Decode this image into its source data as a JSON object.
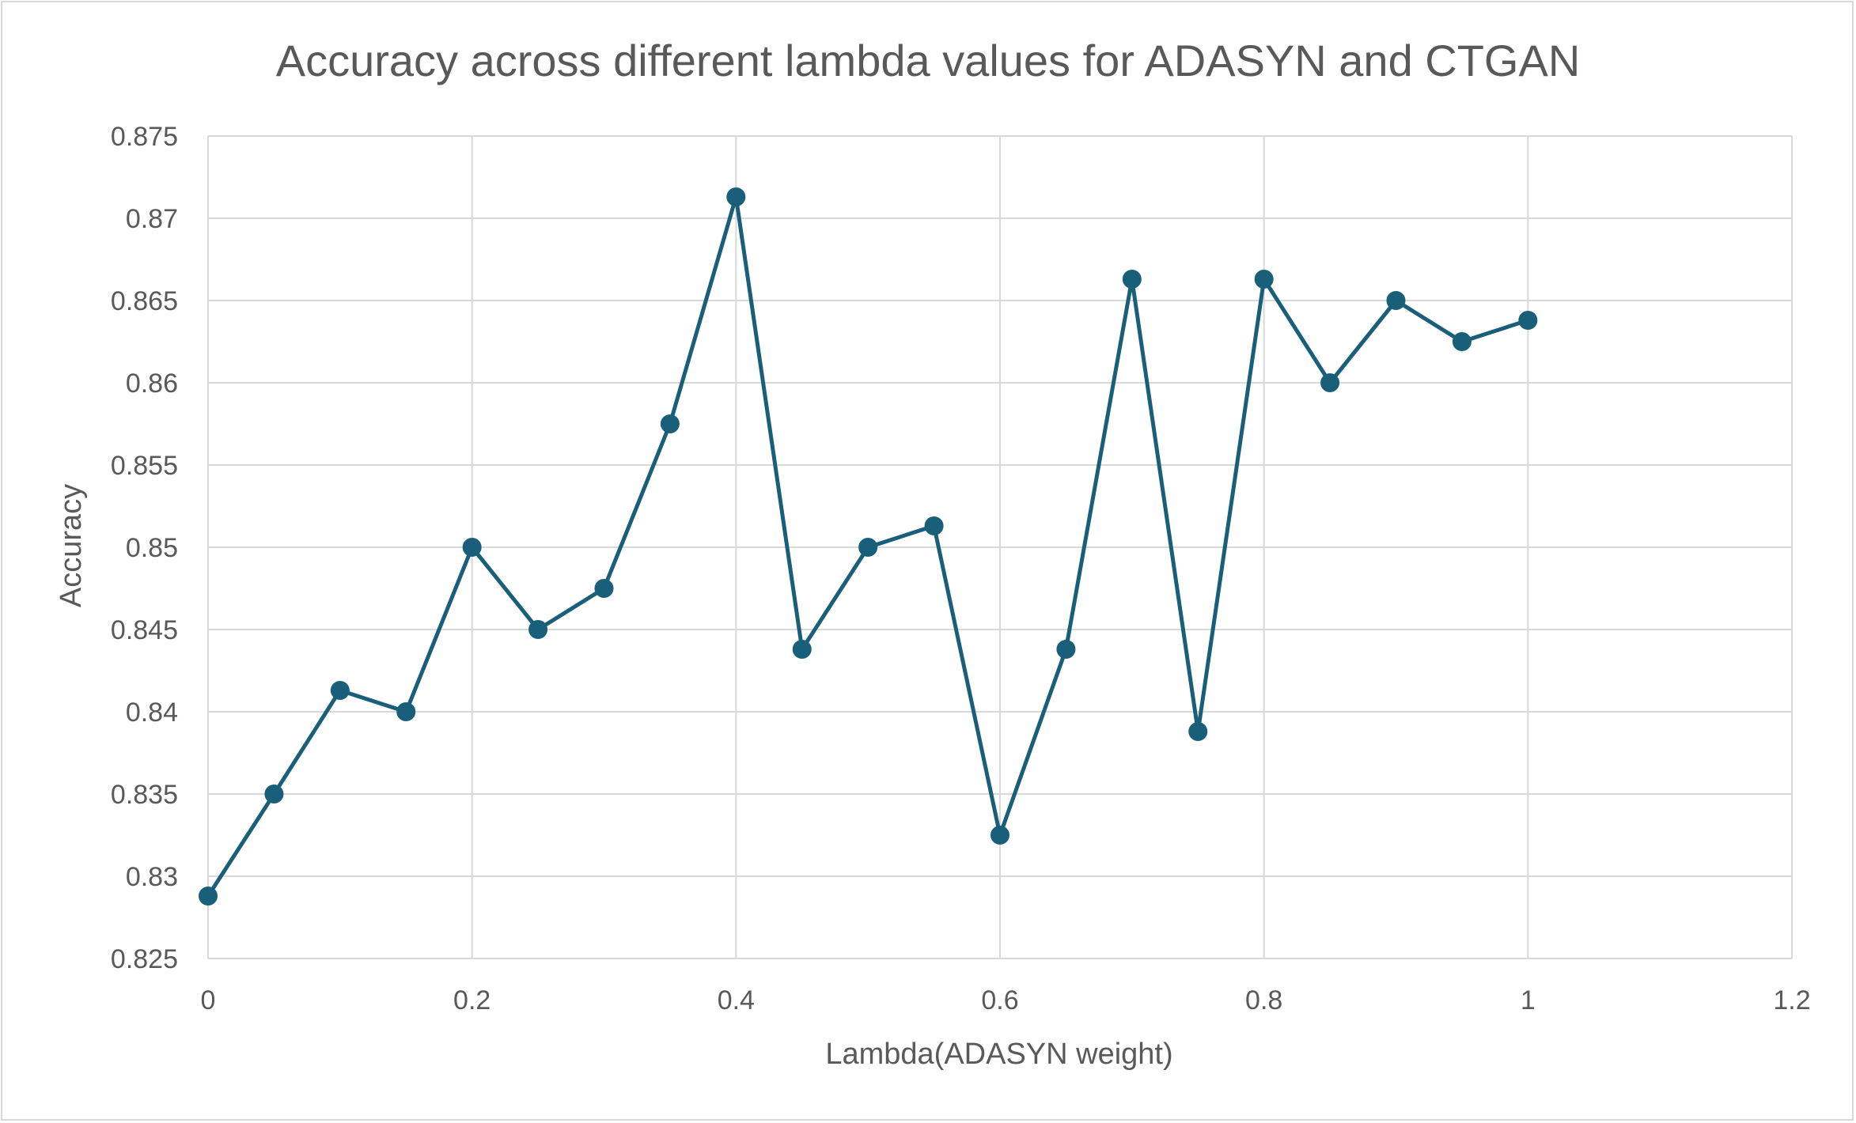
{
  "chart_data": {
    "type": "line",
    "title": "Accuracy  across different lambda values for ADASYN and CTGAN",
    "xlabel": "Lambda(ADASYN weight)",
    "ylabel": "Accuracy",
    "xlim": [
      0,
      1.2
    ],
    "ylim": [
      0.825,
      0.875
    ],
    "xticks": [
      0,
      0.2,
      0.4,
      0.6,
      0.8,
      1,
      1.2
    ],
    "yticks": [
      0.825,
      0.83,
      0.835,
      0.84,
      0.845,
      0.85,
      0.855,
      0.86,
      0.865,
      0.87,
      0.875
    ],
    "xtick_labels": [
      "0",
      "0.2",
      "0.4",
      "0.6",
      "0.8",
      "1",
      "1.2"
    ],
    "ytick_labels": [
      "0.825",
      "0.83",
      "0.835",
      "0.84",
      "0.845",
      "0.85",
      "0.855",
      "0.86",
      "0.865",
      "0.87",
      "0.875"
    ],
    "grid": true,
    "legend": "none",
    "series": [
      {
        "color": "#1a5f7a",
        "marker": "circle",
        "x": [
          0,
          0.05,
          0.1,
          0.15,
          0.2,
          0.25,
          0.3,
          0.35,
          0.4,
          0.45,
          0.5,
          0.55,
          0.6,
          0.65,
          0.7,
          0.75,
          0.8,
          0.85,
          0.9,
          0.95,
          1.0
        ],
        "y": [
          0.8288,
          0.835,
          0.8413,
          0.84,
          0.85,
          0.845,
          0.8475,
          0.8575,
          0.8713,
          0.8438,
          0.85,
          0.8513,
          0.8325,
          0.8438,
          0.8663,
          0.8388,
          0.8663,
          0.86,
          0.865,
          0.8625,
          0.8638
        ]
      }
    ]
  },
  "colors": {
    "grid": "#d9d9d9",
    "text": "#595959",
    "line": "#1a5f7a"
  }
}
